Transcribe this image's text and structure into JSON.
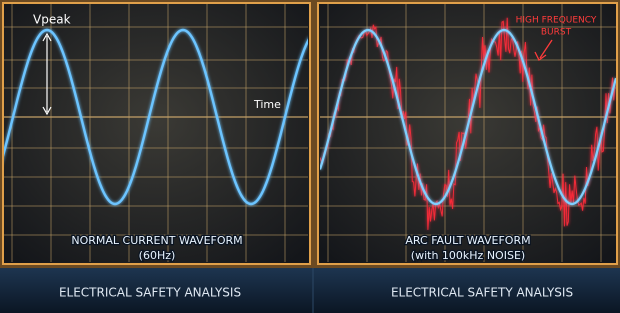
{
  "left_panel": {
    "peak_label": "Vpeak",
    "axis_label": "Time",
    "caption": {
      "title": "NORMAL CURRENT WAVEFORM",
      "subtitle": "(60Hz)"
    },
    "footer": "ELECTRICAL SAFETY ANALYSIS"
  },
  "right_panel": {
    "annotation": {
      "line1": "HIGH FREQUENCY",
      "line2": "BURST"
    },
    "caption": {
      "title": "ARC FAULT WAVEFORM",
      "subtitle": "(with 100kHz NOISE)"
    },
    "footer": "ELECTRICAL SAFETY ANALYSIS"
  }
}
